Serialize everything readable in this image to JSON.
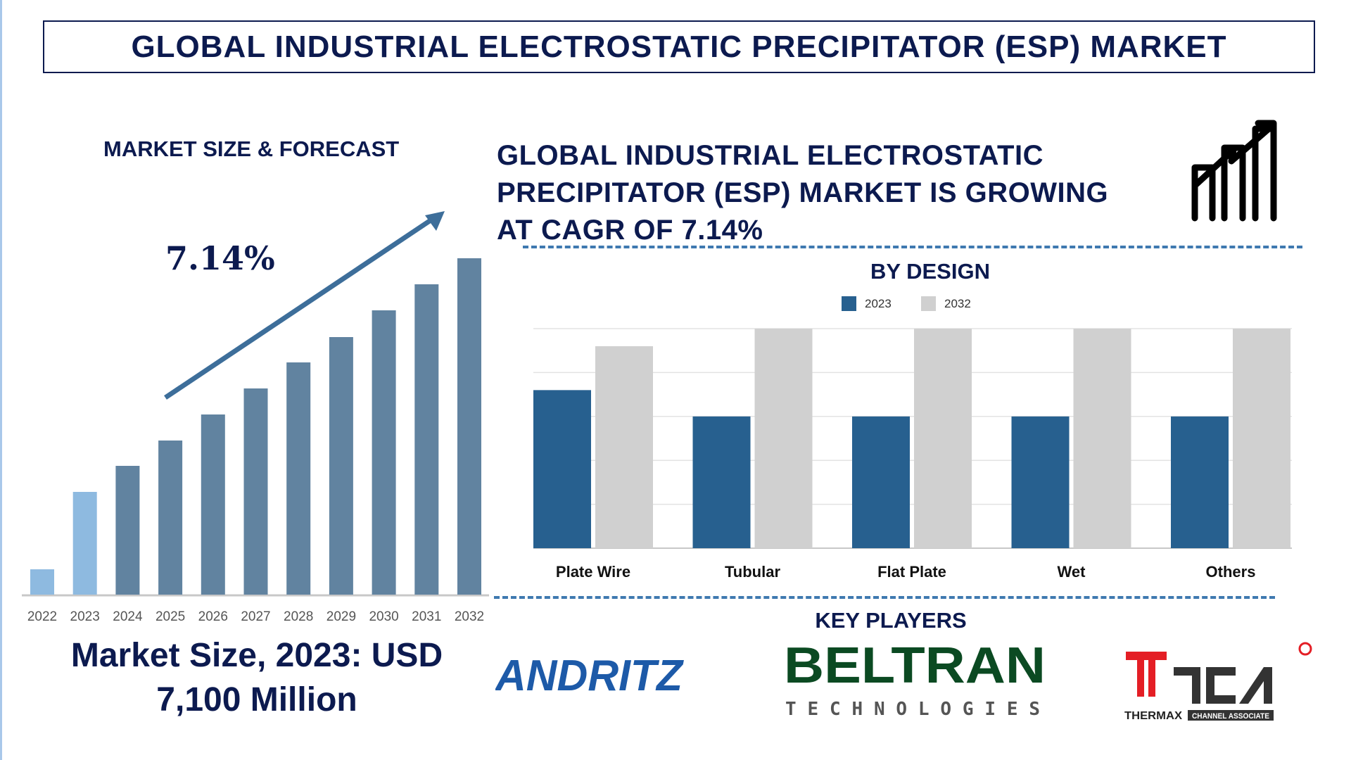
{
  "title": "GLOBAL INDUSTRIAL ELECTROSTATIC PRECIPITATOR (ESP) MARKET",
  "left_panel": {
    "heading": "MARKET SIZE & FORECAST",
    "cagr": "7.14%",
    "market_size_line1": "Market Size, 2023: USD",
    "market_size_line2": "7,100 Million"
  },
  "headline": {
    "line1": "GLOBAL INDUSTRIAL ELECTROSTATIC",
    "line2": "PRECIPITATOR (ESP) MARKET IS GROWING",
    "line3": "AT CAGR OF 7.14%",
    "icon": "growth-chart-icon"
  },
  "key_players": {
    "heading": "KEY PLAYERS",
    "logos": [
      "ANDRITZ",
      "BELTRAN TECHNOLOGIES",
      "THERMAX TCA CHANNEL ASSOCIATE"
    ]
  },
  "colors": {
    "navy": "#0c1a4f",
    "bar": "#6183a0",
    "bar_highlight": "#8ebae0",
    "s2023": "#27608f",
    "s2032": "#d0d0d0",
    "dash": "#3f79b0"
  },
  "chart_data": [
    {
      "type": "bar",
      "title": "MARKET SIZE & FORECAST",
      "categories": [
        "2022",
        "2023",
        "2024",
        "2025",
        "2026",
        "2027",
        "2028",
        "2029",
        "2030",
        "2031",
        "2032"
      ],
      "values": [
        36,
        146,
        183,
        219,
        256,
        293,
        330,
        366,
        404,
        441,
        478
      ],
      "highlight": [
        "2022",
        "2023"
      ],
      "ylim": [
        0,
        500
      ],
      "grid": false,
      "annotation": "7.14%"
    },
    {
      "type": "bar",
      "title": "BY DESIGN",
      "categories": [
        "Plate Wire",
        "Tubular",
        "Flat Plate",
        "Wet",
        "Others"
      ],
      "series": [
        {
          "name": "2023",
          "values": [
            3.6,
            3.0,
            3.0,
            3.0,
            3.0
          ]
        },
        {
          "name": "2032",
          "values": [
            4.6,
            5.0,
            5.0,
            5.0,
            5.0
          ]
        }
      ],
      "ylim": [
        0,
        5
      ],
      "grid": true,
      "legend": "top"
    }
  ]
}
